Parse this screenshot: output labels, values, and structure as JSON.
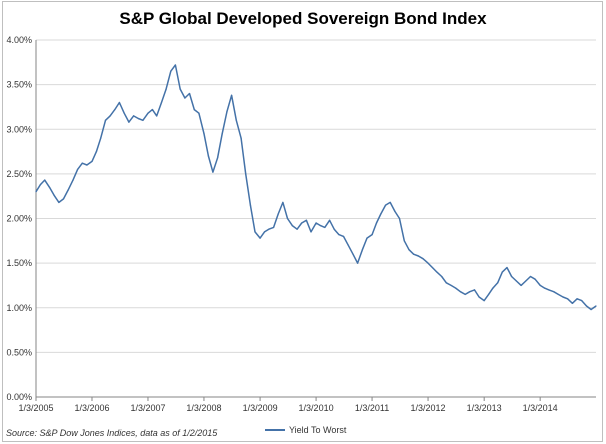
{
  "chart_data": {
    "type": "line",
    "title": "S&P Global Developed Sovereign Bond Index",
    "xlabel": "",
    "ylabel": "",
    "ylim": [
      0.0,
      0.04
    ],
    "y_ticks": [
      "0.00%",
      "0.50%",
      "1.00%",
      "1.50%",
      "2.00%",
      "2.50%",
      "3.00%",
      "3.50%",
      "4.00%"
    ],
    "x_ticks": [
      "1/3/2005",
      "1/3/2006",
      "1/3/2007",
      "1/3/2008",
      "1/3/2009",
      "1/3/2010",
      "1/3/2011",
      "1/3/2012",
      "1/3/2013",
      "1/3/2014"
    ],
    "xlim": [
      "2005-01-03",
      "2015-01-02"
    ],
    "grid": "horizontal",
    "legend_position": "bottom",
    "series": [
      {
        "name": "Yield To Worst",
        "color": "#4472a8",
        "x": [
          "2005-01-03",
          "2005-02-01",
          "2005-03-01",
          "2005-04-01",
          "2005-05-01",
          "2005-06-01",
          "2005-07-01",
          "2005-08-01",
          "2005-09-01",
          "2005-10-01",
          "2005-11-01",
          "2005-12-01",
          "2006-01-03",
          "2006-02-01",
          "2006-03-01",
          "2006-04-01",
          "2006-05-01",
          "2006-06-01",
          "2006-07-01",
          "2006-08-01",
          "2006-09-01",
          "2006-10-01",
          "2006-11-01",
          "2006-12-01",
          "2007-01-03",
          "2007-02-01",
          "2007-03-01",
          "2007-04-01",
          "2007-05-01",
          "2007-06-01",
          "2007-07-01",
          "2007-08-01",
          "2007-09-01",
          "2007-10-01",
          "2007-11-01",
          "2007-12-01",
          "2008-01-03",
          "2008-02-01",
          "2008-03-01",
          "2008-04-01",
          "2008-05-01",
          "2008-06-01",
          "2008-07-01",
          "2008-08-01",
          "2008-09-01",
          "2008-10-01",
          "2008-11-01",
          "2008-12-01",
          "2009-01-03",
          "2009-02-01",
          "2009-03-01",
          "2009-04-01",
          "2009-05-01",
          "2009-06-01",
          "2009-07-01",
          "2009-08-01",
          "2009-09-01",
          "2009-10-01",
          "2009-11-01",
          "2009-12-01",
          "2010-01-03",
          "2010-02-01",
          "2010-03-01",
          "2010-04-01",
          "2010-05-01",
          "2010-06-01",
          "2010-07-01",
          "2010-08-01",
          "2010-09-01",
          "2010-10-01",
          "2010-11-01",
          "2010-12-01",
          "2011-01-03",
          "2011-02-01",
          "2011-03-01",
          "2011-04-01",
          "2011-05-01",
          "2011-06-01",
          "2011-07-01",
          "2011-08-01",
          "2011-09-01",
          "2011-10-01",
          "2011-11-01",
          "2011-12-01",
          "2012-01-03",
          "2012-02-01",
          "2012-03-01",
          "2012-04-01",
          "2012-05-01",
          "2012-06-01",
          "2012-07-01",
          "2012-08-01",
          "2012-09-01",
          "2012-10-01",
          "2012-11-01",
          "2012-12-01",
          "2013-01-03",
          "2013-02-01",
          "2013-03-01",
          "2013-04-01",
          "2013-05-01",
          "2013-06-01",
          "2013-07-01",
          "2013-08-01",
          "2013-09-01",
          "2013-10-01",
          "2013-11-01",
          "2013-12-01",
          "2014-01-03",
          "2014-02-01",
          "2014-03-01",
          "2014-04-01",
          "2014-05-01",
          "2014-06-01",
          "2014-07-01",
          "2014-08-01",
          "2014-09-01",
          "2014-10-01",
          "2014-11-01",
          "2014-12-01",
          "2015-01-02"
        ],
        "values": [
          0.023,
          0.0238,
          0.0243,
          0.0235,
          0.0226,
          0.0218,
          0.0222,
          0.0232,
          0.0243,
          0.0255,
          0.0262,
          0.026,
          0.0264,
          0.0275,
          0.029,
          0.031,
          0.0315,
          0.0322,
          0.033,
          0.0318,
          0.0308,
          0.0315,
          0.0312,
          0.031,
          0.0318,
          0.0322,
          0.0315,
          0.033,
          0.0345,
          0.0365,
          0.0372,
          0.0345,
          0.0335,
          0.034,
          0.0322,
          0.0318,
          0.0295,
          0.027,
          0.0252,
          0.0268,
          0.0295,
          0.032,
          0.0338,
          0.031,
          0.029,
          0.025,
          0.0215,
          0.0185,
          0.0178,
          0.0185,
          0.0188,
          0.019,
          0.0205,
          0.0218,
          0.02,
          0.0192,
          0.0188,
          0.0195,
          0.0198,
          0.0185,
          0.0195,
          0.0192,
          0.019,
          0.0198,
          0.0188,
          0.0182,
          0.018,
          0.017,
          0.016,
          0.015,
          0.0165,
          0.0178,
          0.0182,
          0.0195,
          0.0205,
          0.0215,
          0.0218,
          0.0208,
          0.02,
          0.0175,
          0.0165,
          0.016,
          0.0158,
          0.0155,
          0.015,
          0.0145,
          0.014,
          0.0135,
          0.0128,
          0.0125,
          0.0122,
          0.0118,
          0.0115,
          0.0118,
          0.012,
          0.0112,
          0.0108,
          0.0115,
          0.0122,
          0.0128,
          0.014,
          0.0145,
          0.0135,
          0.013,
          0.0125,
          0.013,
          0.0135,
          0.0132,
          0.0125,
          0.0122,
          0.012,
          0.0118,
          0.0115,
          0.0112,
          0.011,
          0.0105,
          0.011,
          0.0108,
          0.0102,
          0.0098,
          0.0102
        ]
      }
    ]
  },
  "source_text": "Source: S&P Dow Jones Indices, data as of 1/2/2015",
  "legend_label": "Yield To Worst"
}
